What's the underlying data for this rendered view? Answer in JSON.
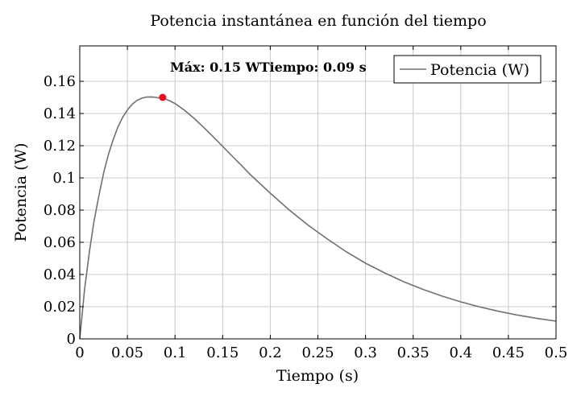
{
  "chart_data": {
    "type": "line",
    "title": "Potencia instantánea en función del tiempo",
    "xlabel": "Tiempo (s)",
    "ylabel": "Potencia (W)",
    "xlim": [
      0,
      0.5
    ],
    "ylim": [
      0,
      0.17
    ],
    "xticks": [
      0,
      0.05,
      0.1,
      0.15,
      0.2,
      0.25,
      0.3,
      0.35,
      0.4,
      0.45,
      0.5
    ],
    "xtick_labels": [
      "0",
      "0.05",
      "0.1",
      "0.15",
      "0.2",
      "0.25",
      "0.3",
      "0.35",
      "0.4",
      "0.45",
      "0.5"
    ],
    "yticks": [
      0,
      0.02,
      0.04,
      0.06,
      0.08,
      0.1,
      0.12,
      0.14,
      0.16
    ],
    "ytick_labels": [
      "0",
      "0.02",
      "0.04",
      "0.06",
      "0.08",
      "0.1",
      "0.12",
      "0.14",
      "0.16"
    ],
    "grid": true,
    "legend_position": "top-right",
    "series": [
      {
        "name": "Potencia (W)",
        "color": "#707070",
        "x": [
          0,
          0.005,
          0.01,
          0.015,
          0.02,
          0.025,
          0.03,
          0.035,
          0.04,
          0.045,
          0.05,
          0.055,
          0.06,
          0.065,
          0.07,
          0.075,
          0.08,
          0.085,
          0.09,
          0.095,
          0.1,
          0.11,
          0.12,
          0.13,
          0.14,
          0.15,
          0.16,
          0.17,
          0.18,
          0.19,
          0.2,
          0.22,
          0.24,
          0.26,
          0.28,
          0.3,
          0.32,
          0.34,
          0.36,
          0.38,
          0.4,
          0.42,
          0.44,
          0.46,
          0.48,
          0.5
        ],
        "y": [
          0,
          0.0306,
          0.0536,
          0.0733,
          0.0887,
          0.103,
          0.1144,
          0.1236,
          0.1316,
          0.1376,
          0.1422,
          0.1457,
          0.1481,
          0.1495,
          0.1502,
          0.1503,
          0.15,
          0.1494,
          0.149,
          0.1477,
          0.1462,
          0.142,
          0.137,
          0.1314,
          0.1256,
          0.1196,
          0.1135,
          0.1076,
          0.1015,
          0.096,
          0.0905,
          0.08,
          0.0705,
          0.062,
          0.054,
          0.047,
          0.041,
          0.0355,
          0.0308,
          0.0266,
          0.023,
          0.0198,
          0.0171,
          0.0147,
          0.0127,
          0.011
        ]
      }
    ],
    "max_point": {
      "x": 0.087,
      "y": 0.15,
      "color": "#e8101e"
    },
    "annotation": "Máx: 0.15 WTiempo: 0.09 s"
  }
}
